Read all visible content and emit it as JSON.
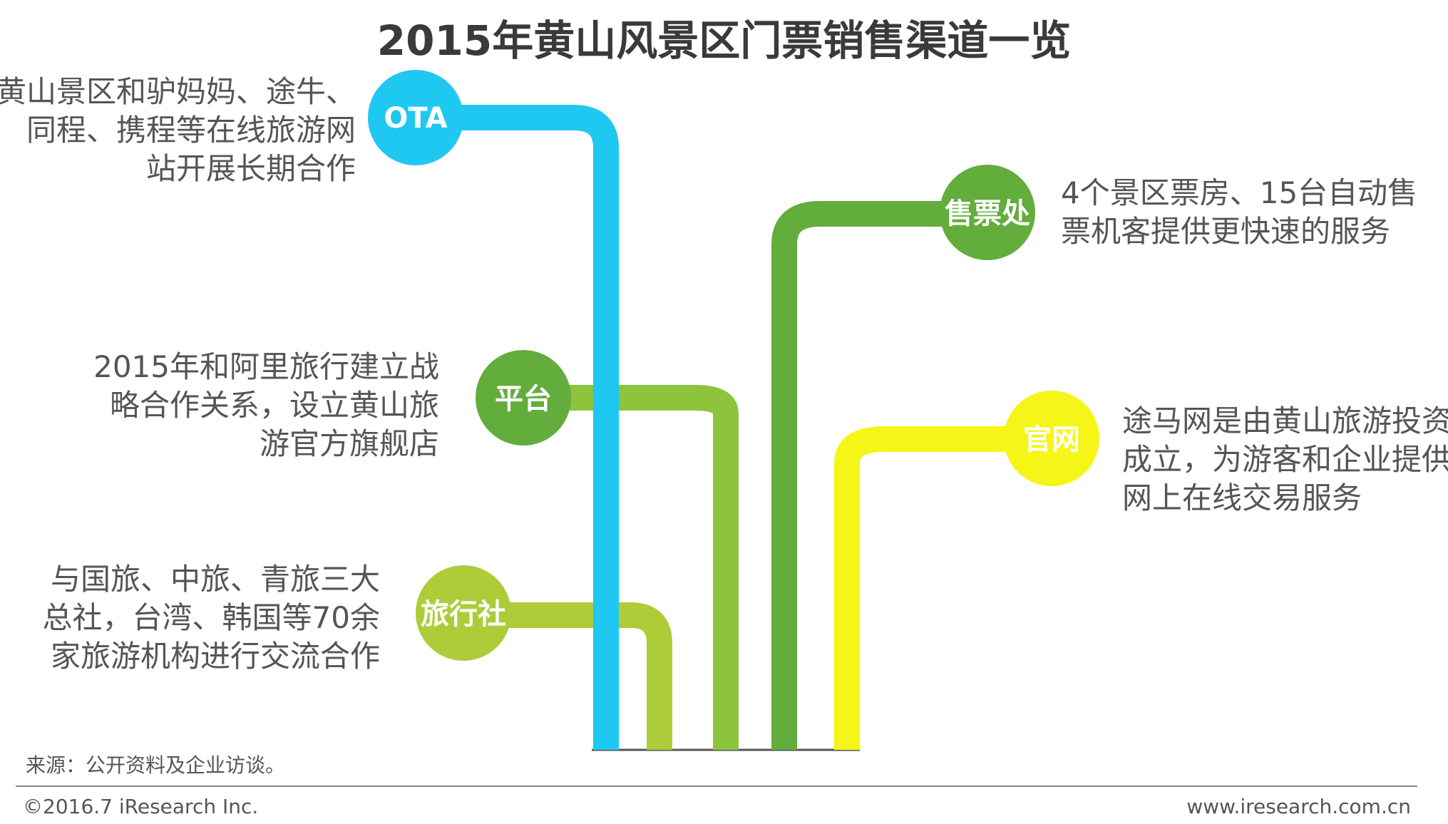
{
  "title": "2015年黄山风景区门票销售渠道一览",
  "channels": [
    {
      "label": "OTA",
      "color": "#1EC8F0",
      "description": [
        "黄山景区和驴妈妈、途牛、",
        "同程、携程等在线旅游网",
        "站开展长期合作"
      ]
    },
    {
      "label": "售票处",
      "color": "#62AD3C",
      "description": [
        "4个景区票房、15台自动售",
        "票机客提供更快速的服务"
      ]
    },
    {
      "label": "平台",
      "color": "#8CC43D",
      "description": [
        "2015年和阿里旅行建立战",
        "略合作关系，设立黄山旅",
        "游官方旗舰店"
      ]
    },
    {
      "label": "官网",
      "color": "#F5F517",
      "description": [
        "途马网是由黄山旅游投资",
        "成立，为游客和企业提供",
        "网上在线交易服务"
      ]
    },
    {
      "label": "旅行社",
      "color": "#ADCC38",
      "description": [
        "与国旅、中旅、青旅三大",
        "总社，台湾、韩国等70余",
        "家旅游机构进行交流合作"
      ]
    }
  ],
  "footer": {
    "source": "来源：公开资料及企业访谈。",
    "copyright": "©2016.7 iResearch Inc.",
    "website": "www.iresearch.com.cn"
  }
}
